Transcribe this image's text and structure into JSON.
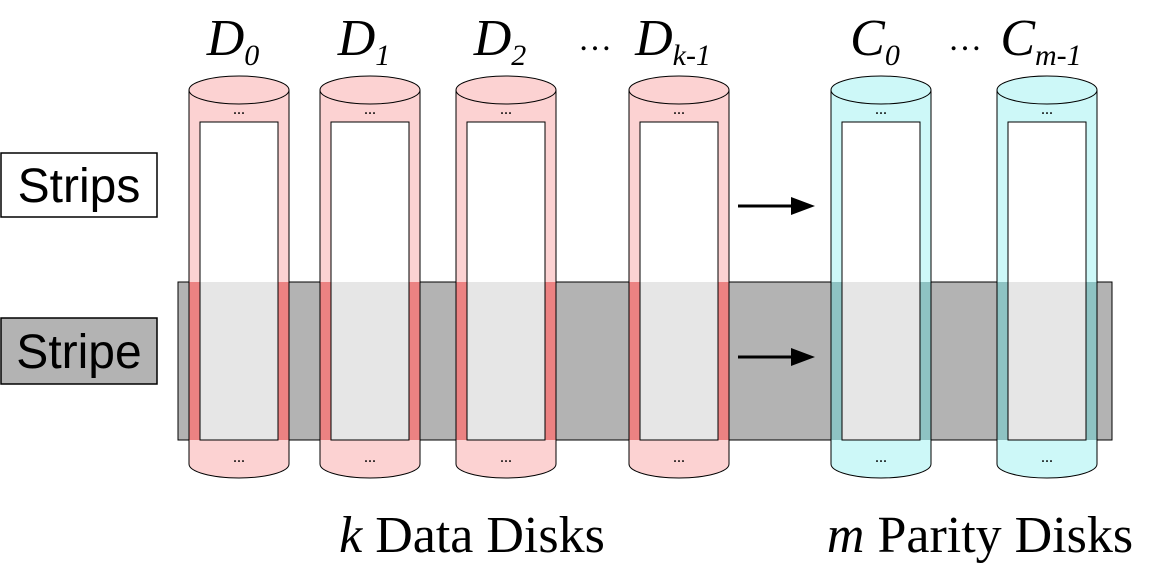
{
  "labels": {
    "strips": "Strips",
    "stripe": "Stripe",
    "data_disks_var": "k",
    "data_disks_text": " Data Disks",
    "parity_disks_var": "m",
    "parity_disks_text": " Parity Disks",
    "ellipsis": "…",
    "small_ellipsis": "..."
  },
  "data_disks": [
    {
      "letter": "D",
      "sub": "0"
    },
    {
      "letter": "D",
      "sub": "1"
    },
    {
      "letter": "D",
      "sub": "2"
    },
    {
      "letter": "D",
      "sub": "k-1"
    }
  ],
  "parity_disks": [
    {
      "letter": "C",
      "sub": "0"
    },
    {
      "letter": "C",
      "sub": "m-1"
    }
  ],
  "colors": {
    "data_fill": "#fcd2d2",
    "data_band": "#ec8282",
    "parity_fill": "#cdf8f8",
    "parity_band": "#8ec3c3",
    "stripe_band": "#b3b3b3",
    "stripe_inner": "#e6e6e6"
  }
}
